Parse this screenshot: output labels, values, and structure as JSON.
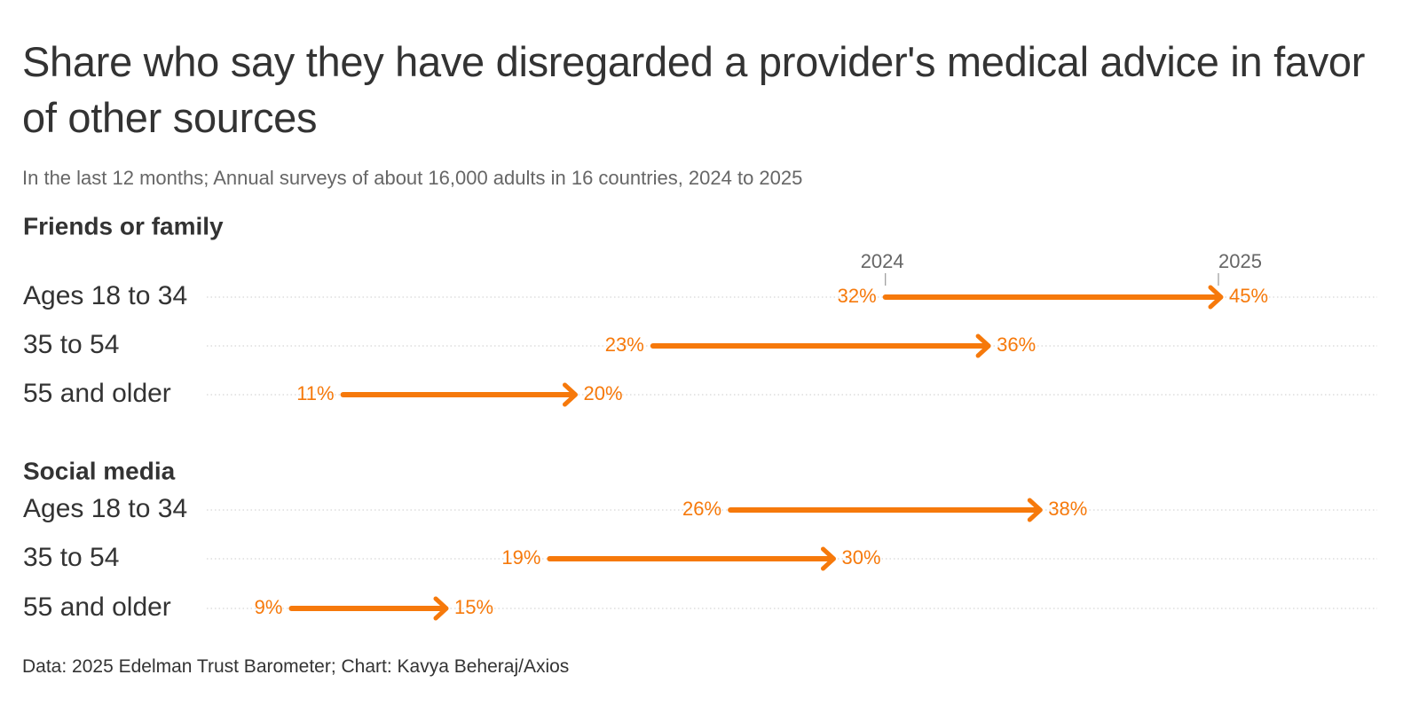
{
  "title": "Share who say they have disregarded a provider's medical advice in favor of other sources",
  "subtitle": "In the last 12 months; Annual surveys of about 16,000 adults in 16 countries, 2024 to 2025",
  "source": "Data: 2025 Edelman Trust Barometer; Chart: Kavya Beheraj/Axios",
  "colors": {
    "arrow": "#f6790b",
    "text": "#333333",
    "muted": "#666666",
    "grid": "#cccccc"
  },
  "chart_data": {
    "type": "arrow",
    "legend": {
      "start": "2024",
      "end": "2025"
    },
    "x_range": [
      0,
      50
    ],
    "groups": [
      {
        "name": "Friends or family",
        "rows": [
          {
            "label": "Ages 18 to 34",
            "start": 32,
            "end": 45,
            "start_label": "32%",
            "end_label": "45%"
          },
          {
            "label": "35 to 54",
            "start": 23,
            "end": 36,
            "start_label": "23%",
            "end_label": "36%"
          },
          {
            "label": "55 and older",
            "start": 11,
            "end": 20,
            "start_label": "11%",
            "end_label": "20%"
          }
        ]
      },
      {
        "name": "Social media",
        "rows": [
          {
            "label": "Ages 18 to 34",
            "start": 26,
            "end": 38,
            "start_label": "26%",
            "end_label": "38%"
          },
          {
            "label": "35 to 54",
            "start": 19,
            "end": 30,
            "start_label": "19%",
            "end_label": "30%"
          },
          {
            "label": "55 and older",
            "start": 9,
            "end": 15,
            "start_label": "9%",
            "end_label": "15%"
          }
        ]
      }
    ]
  }
}
